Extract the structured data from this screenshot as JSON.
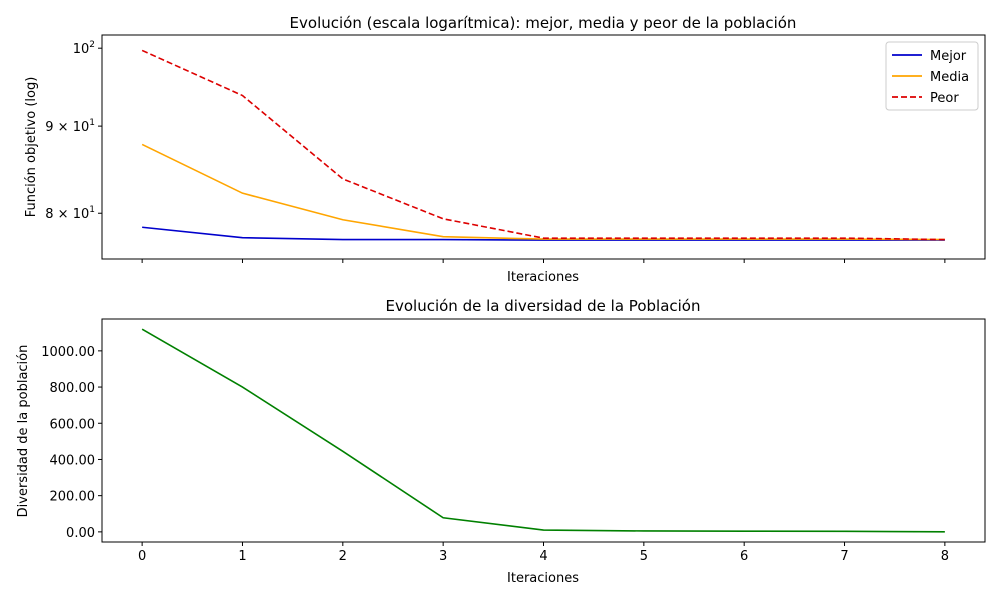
{
  "colors": {
    "mejor": "#0000cc",
    "media": "#ffa500",
    "peor": "#dd0000",
    "diversidad": "#008000",
    "axes": "#000000",
    "background": "#ffffff"
  },
  "chart_data": [
    {
      "type": "line",
      "title": "Evolución (escala logarítmica): mejor, media y peor de la población",
      "xlabel": "Iteraciones",
      "ylabel": "Función objetivo (log)",
      "yscale": "log",
      "x": [
        0,
        1,
        2,
        3,
        4,
        5,
        6,
        7,
        8
      ],
      "xlim": [
        -0.4,
        8.4
      ],
      "ylim": [
        75.2,
        101.8
      ],
      "xtick_labels_shown": false,
      "yticks": [
        {
          "value": 100,
          "base": "10",
          "exp": "2"
        },
        {
          "value": 90,
          "base": "9 × 10",
          "exp": "1"
        },
        {
          "value": 80,
          "base": "8 × 10",
          "exp": "1"
        }
      ],
      "grid": false,
      "legend_position": "top-right",
      "series": [
        {
          "name": "Mejor",
          "style": "solid",
          "color_key": "mejor",
          "values": [
            78.5,
            77.4,
            77.2,
            77.2,
            77.15,
            77.15,
            77.15,
            77.15,
            77.15
          ]
        },
        {
          "name": "Media",
          "style": "solid",
          "color_key": "media",
          "values": [
            87.8,
            82.2,
            79.3,
            77.5,
            77.25,
            77.25,
            77.25,
            77.25,
            77.2
          ]
        },
        {
          "name": "Peor",
          "style": "dashed",
          "color_key": "peor",
          "values": [
            99.7,
            93.8,
            83.8,
            79.4,
            77.35,
            77.35,
            77.35,
            77.35,
            77.2
          ]
        }
      ]
    },
    {
      "type": "line",
      "title": "Evolución de la diversidad de la Población",
      "xlabel": "Iteraciones",
      "ylabel": "Diversidad de la población",
      "x": [
        0,
        1,
        2,
        3,
        4,
        5,
        6,
        7,
        8
      ],
      "xlim": [
        -0.4,
        8.4
      ],
      "ylim": [
        -56,
        1176
      ],
      "xticks": [
        "0",
        "1",
        "2",
        "3",
        "4",
        "5",
        "6",
        "7",
        "8"
      ],
      "yticks": [
        "0.00",
        "200.00",
        "400.00",
        "600.00",
        "800.00",
        "1000.00"
      ],
      "grid": false,
      "series": [
        {
          "style": "solid",
          "color_key": "diversidad",
          "values": [
            1120,
            800,
            445,
            78,
            10,
            5,
            4,
            3,
            0
          ]
        }
      ]
    }
  ]
}
